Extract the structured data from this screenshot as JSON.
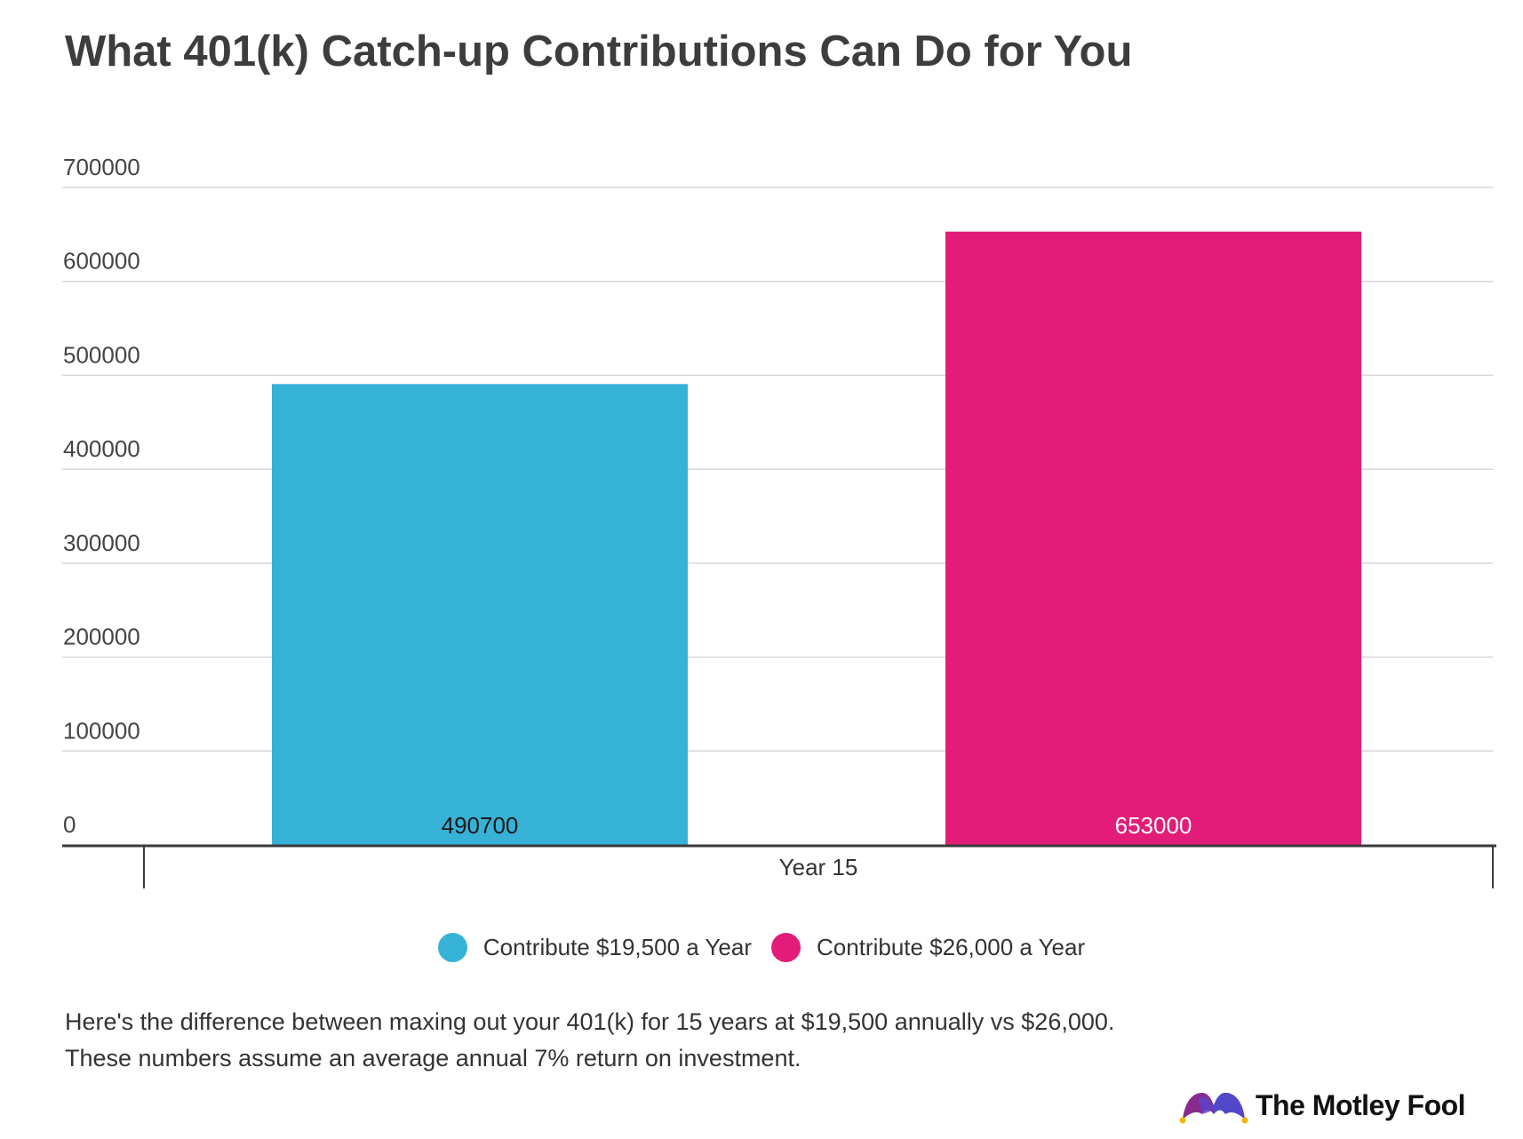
{
  "chart_data": {
    "type": "bar",
    "title": "What 401(k) Catch-up Contributions Can Do for You",
    "categories": [
      "Year 15"
    ],
    "series": [
      {
        "name": "Contribute $19,500 a Year",
        "values": [
          490700
        ],
        "color": "#37b2d7",
        "label_color": "#1a1a1a"
      },
      {
        "name": "Contribute $26,000 a Year",
        "values": [
          653000
        ],
        "color": "#e31c79",
        "label_color": "#ffffff"
      }
    ],
    "y_ticks": [
      "0",
      "100000",
      "200000",
      "300000",
      "400000",
      "500000",
      "600000",
      "700000"
    ],
    "ylim": [
      0,
      700000
    ],
    "grid": true,
    "legend_position": "bottom"
  },
  "caption": {
    "line1": "Here's the difference between maxing out your 401(k) for 15 years at $19,500 annually vs $26,000.",
    "line2": "These numbers assume an average annual 7% return on investment."
  },
  "brand": {
    "name": "The Motley Fool",
    "icon": "jester-hat-icon"
  }
}
